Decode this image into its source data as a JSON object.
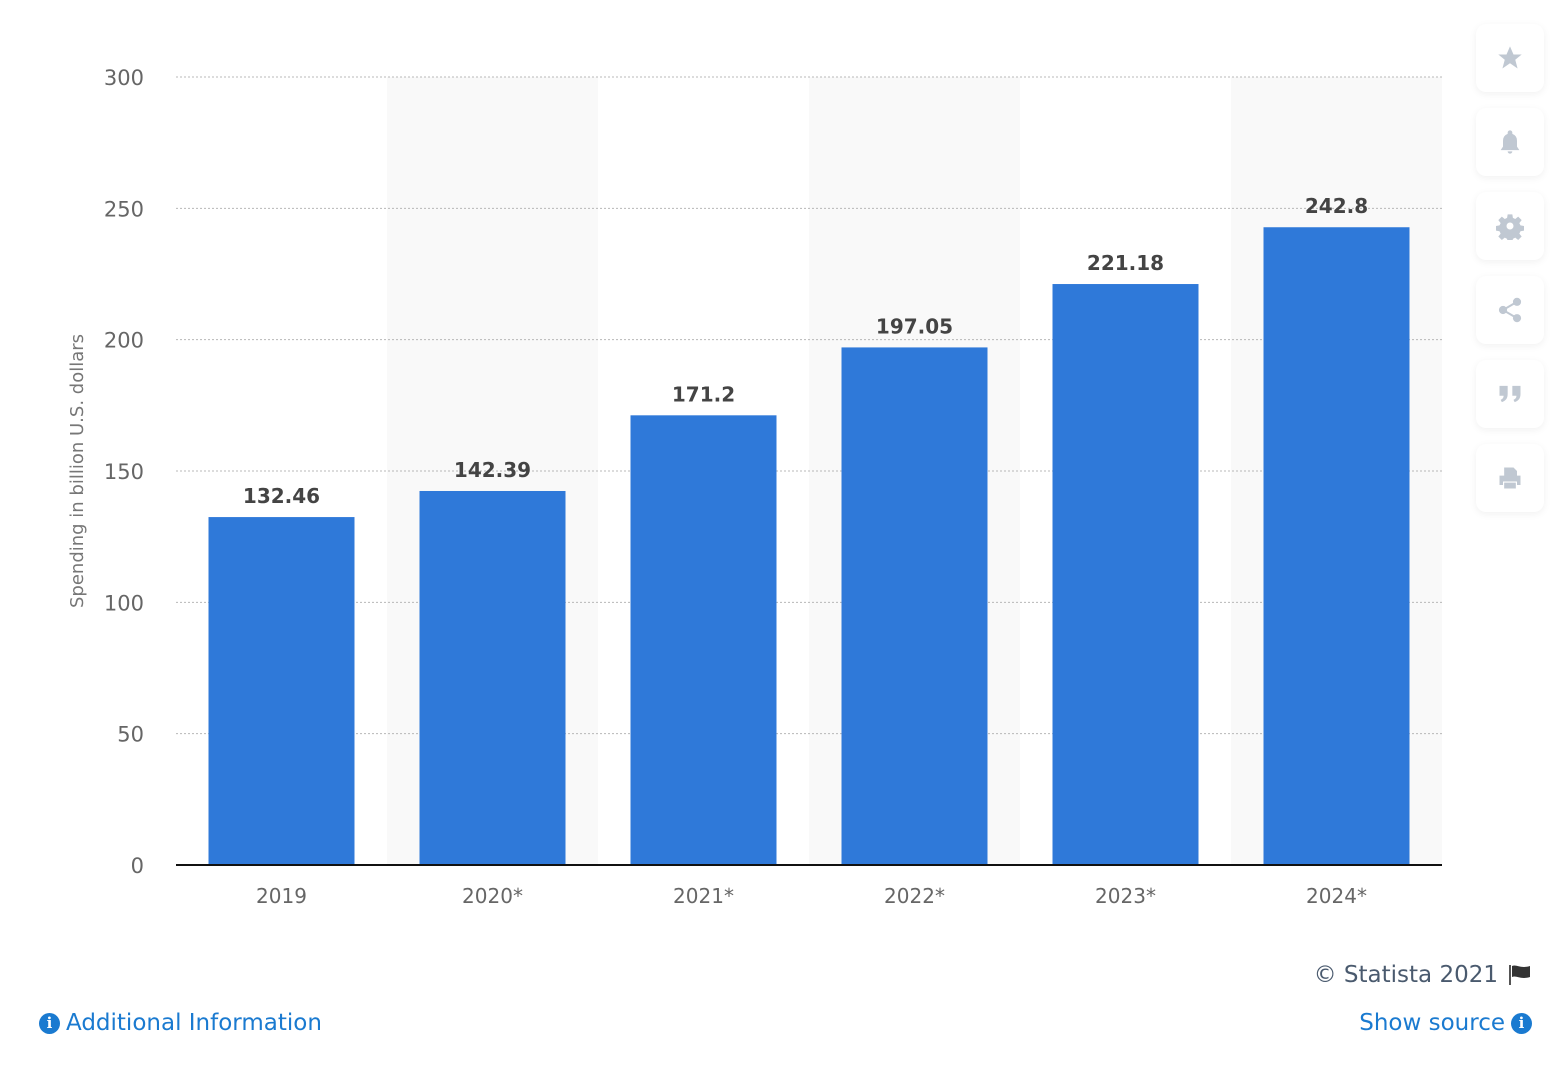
{
  "chart_data": {
    "type": "bar",
    "categories": [
      "2019",
      "2020*",
      "2021*",
      "2022*",
      "2023*",
      "2024*"
    ],
    "values": [
      132.46,
      142.39,
      171.2,
      197.05,
      221.18,
      242.8
    ],
    "value_labels": [
      "132.46",
      "142.39",
      "171.2",
      "197.05",
      "221.18",
      "242.8"
    ],
    "ylabel": "Spending in billion U.S. dollars",
    "xlabel": "",
    "ylim": [
      0,
      300
    ],
    "yticks": [
      0,
      50,
      100,
      150,
      200,
      250,
      300
    ],
    "grid": true,
    "bar_color": "#2f79d9"
  },
  "sidebar": {
    "icons": [
      "star-icon",
      "bell-icon",
      "gear-icon",
      "share-icon",
      "quote-icon",
      "print-icon"
    ]
  },
  "footer": {
    "credit": "© Statista 2021",
    "additional_info": "Additional Information",
    "show_source": "Show source",
    "info_glyph": "i"
  }
}
